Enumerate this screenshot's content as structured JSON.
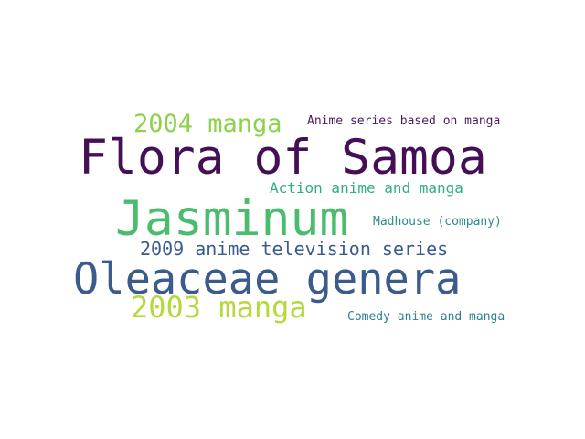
{
  "words": [
    {
      "text": "Flora of Samoa",
      "color": "#440f55"
    },
    {
      "text": "Oleaceae genera",
      "color": "#3a5b8b"
    },
    {
      "text": "Jasminum",
      "color": "#4abd6d"
    },
    {
      "text": "2004 manga",
      "color": "#8ed14c"
    },
    {
      "text": "2003 manga",
      "color": "#b4d93c"
    },
    {
      "text": "2009 anime television series",
      "color": "#3d5a8c"
    },
    {
      "text": "Action anime and manga",
      "color": "#33ad80"
    },
    {
      "text": "Anime series based on manga",
      "color": "#4a1a5e"
    },
    {
      "text": "Madhouse (company)",
      "color": "#2e8c8a"
    },
    {
      "text": "Comedy anime and manga",
      "color": "#2d808d"
    }
  ]
}
